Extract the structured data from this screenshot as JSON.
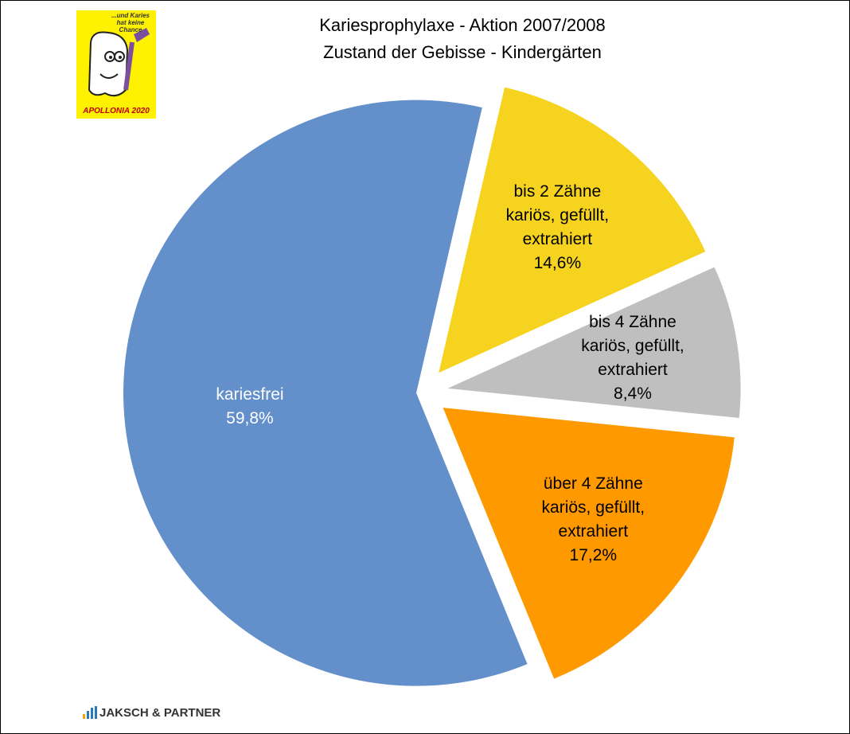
{
  "chart_data": {
    "type": "pie",
    "title": "Kariesprophylaxe - Aktion 2007/2008",
    "subtitle": "Zustand der Gebisse - Kindergärten",
    "categories": [
      "bis 2 Zähne\nkariös, gefüllt,\nextrahiert",
      "bis 4 Zähne\nkariös, gefüllt,\nextrahiert",
      "über 4 Zähne\nkariös, gefüllt,\nextrahiert",
      "kariesfrei"
    ],
    "values": [
      14.6,
      8.4,
      17.2,
      59.8
    ],
    "value_labels": [
      "14,6%",
      "8,4%",
      "17,2%",
      "59,8%"
    ],
    "colors": [
      "#f5d31e",
      "#bfbfbf",
      "#ff9900",
      "#638fcb"
    ],
    "label_colors": [
      "#000000",
      "#000000",
      "#000000",
      "#ffffff"
    ],
    "annotations": [
      "...und Karies hat keine Chance",
      "APOLLONIA 2020",
      "JAKSCH & PARTNER"
    ]
  }
}
